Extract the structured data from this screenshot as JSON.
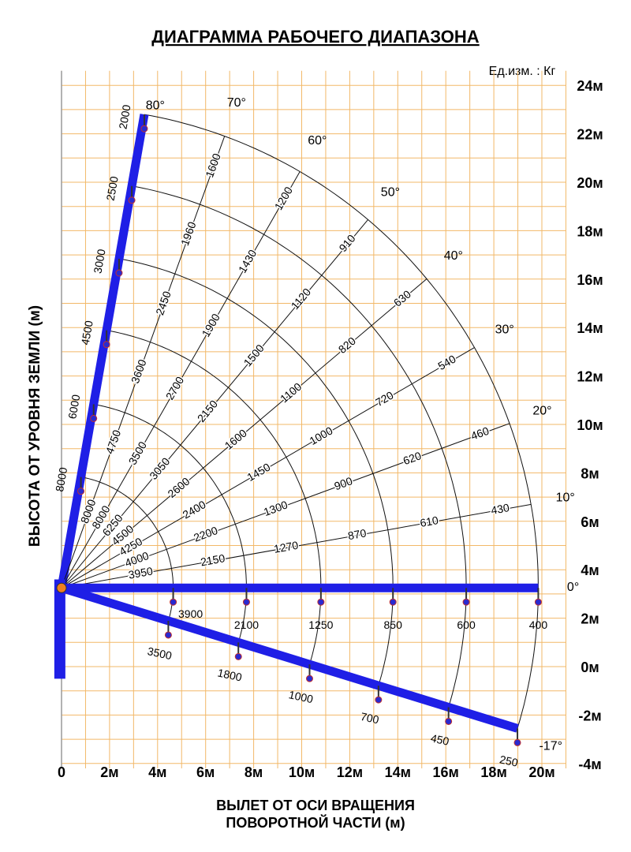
{
  "title": "ДИАГРАММА РАБОЧЕГО ДИАПАЗОНА",
  "unit": "Ед.изм. : Кг",
  "y_axis_title": "ВЫСОТА ОТ УРОВНЯ ЗЕМЛИ (м)",
  "x_axis_title": [
    "ВЫЛЕТ ОТ ОСИ ВРАЩЕНИЯ",
    "ПОВОРОТНОЙ ЧАСТИ (м)"
  ],
  "y_ticks": [
    "24м",
    "22м",
    "20м",
    "18м",
    "16м",
    "14м",
    "12м",
    "10м",
    "8м",
    "6м",
    "4м",
    "2м",
    "0м",
    "-2м",
    "-4м"
  ],
  "x_ticks": [
    "0",
    "2м",
    "4м",
    "6м",
    "8м",
    "10м",
    "12м",
    "14м",
    "16м",
    "18м",
    "20м"
  ],
  "lines": [
    {
      "angle": "80°",
      "loads": [
        8000,
        6000,
        4500,
        3000,
        2500,
        2000
      ]
    },
    {
      "angle": "70°",
      "loads": [
        8000,
        4750,
        3600,
        2450,
        1960,
        1600
      ]
    },
    {
      "angle": "60°",
      "loads": [
        8000,
        3500,
        2700,
        1900,
        1430,
        1200
      ]
    },
    {
      "angle": "50°",
      "loads": [
        6250,
        3050,
        2150,
        1500,
        1120,
        910
      ]
    },
    {
      "angle": "40°",
      "loads": [
        4500,
        2600,
        1600,
        1100,
        820,
        630
      ]
    },
    {
      "angle": "30°",
      "loads": [
        4250,
        2400,
        1450,
        1000,
        720,
        540
      ]
    },
    {
      "angle": "20°",
      "loads": [
        4000,
        2200,
        1300,
        900,
        620,
        460
      ]
    },
    {
      "angle": "10°",
      "loads": [
        3950,
        2150,
        1270,
        870,
        610,
        430
      ]
    },
    {
      "angle": "0°",
      "loads": [
        3900,
        2100,
        1250,
        850,
        600,
        400
      ]
    },
    {
      "angle": "-17°",
      "loads": [
        3500,
        1800,
        1000,
        700,
        450,
        250
      ]
    }
  ]
}
